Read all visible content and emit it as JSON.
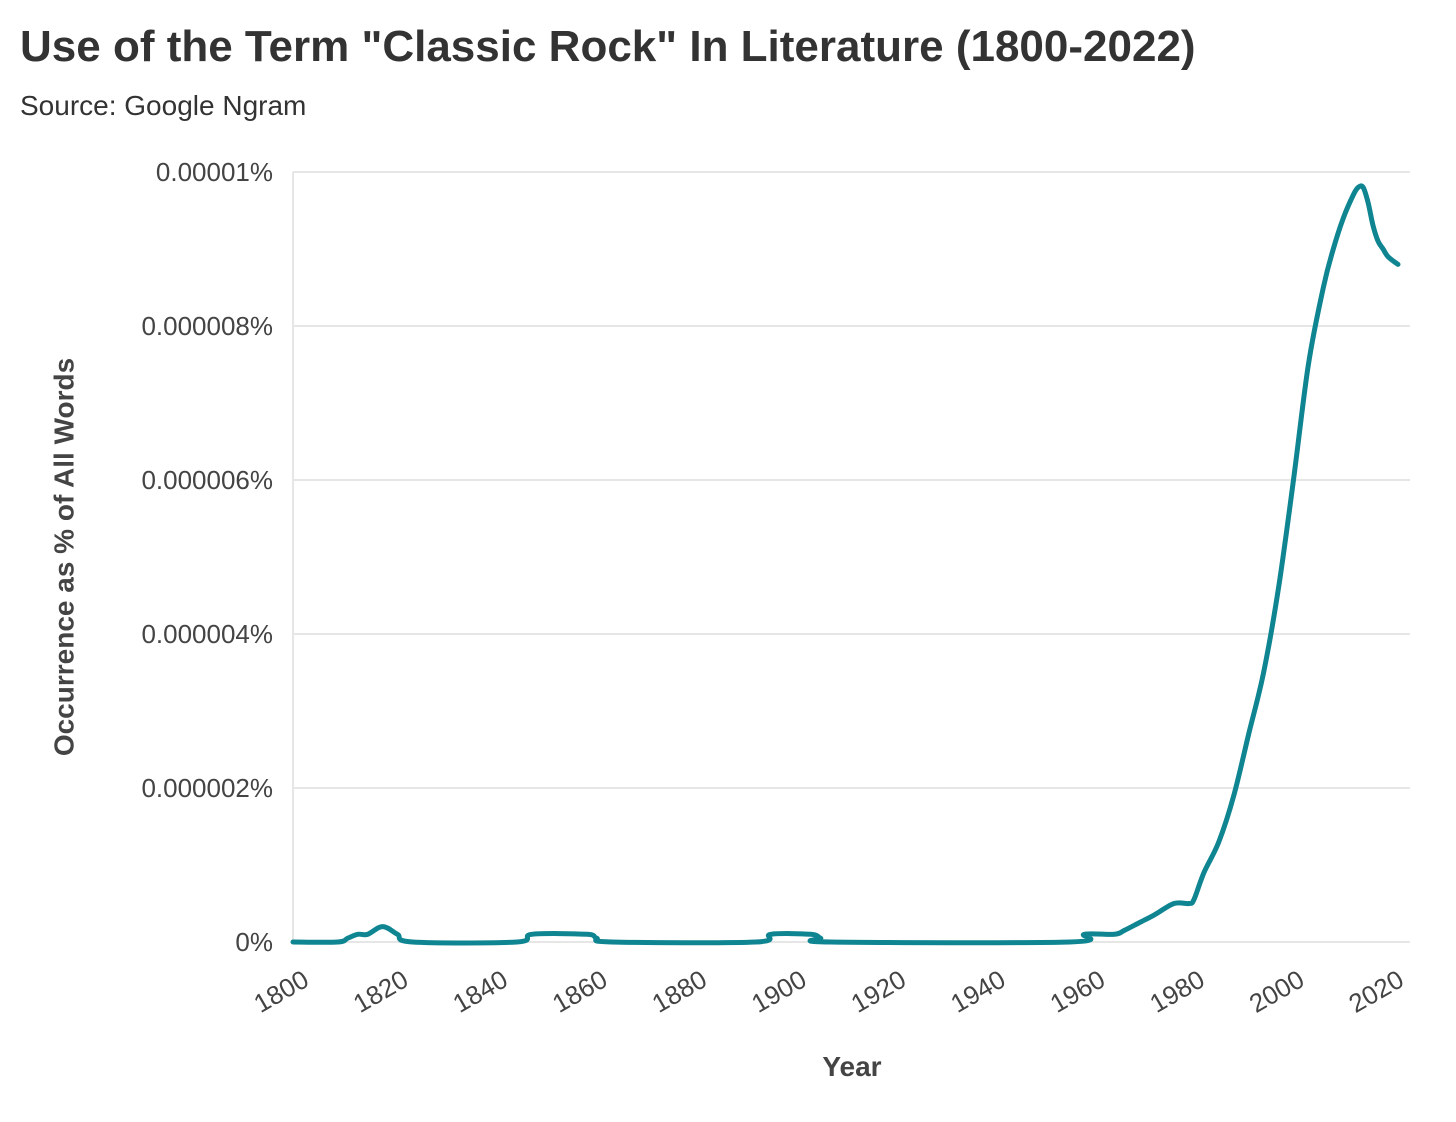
{
  "chart_data": {
    "type": "line",
    "title": "Use of the Term \"Classic Rock\" In Literature (1800-2022)",
    "subtitle": "Source: Google Ngram",
    "xlabel": "Year",
    "ylabel": "Occurrence as % of All Words",
    "xlim": [
      1800,
      2022
    ],
    "ylim": [
      0,
      1e-05
    ],
    "x_ticks": [
      1800,
      1820,
      1840,
      1860,
      1880,
      1900,
      1920,
      1940,
      1960,
      1980,
      2000,
      2020
    ],
    "y_ticks": [
      0,
      2e-06,
      4e-06,
      6e-06,
      8e-06,
      1e-05
    ],
    "y_tick_labels": [
      "0%",
      "0.000002%",
      "0.000004%",
      "0.000006%",
      "0.000008%",
      "0.00001%"
    ],
    "grid": "horizontal",
    "line_color": "#0e8591",
    "series": [
      {
        "x": [
          1800,
          1809,
          1811,
          1813,
          1815,
          1818,
          1821,
          1824,
          1845,
          1848,
          1859,
          1861,
          1864,
          1893,
          1896,
          1904,
          1906,
          1908,
          1956,
          1959,
          1965,
          1967,
          1970,
          1973,
          1977,
          1980,
          1981,
          1983,
          1986,
          1989,
          1992,
          1995,
          1998,
          2001,
          2004,
          2007,
          2009,
          2011,
          2013,
          2014,
          2015,
          2016,
          2017,
          2018,
          2019,
          2020,
          2022
        ],
        "y": [
          0,
          0,
          5e-08,
          1e-07,
          1e-07,
          2e-07,
          1e-07,
          0,
          0,
          1e-07,
          1e-07,
          5e-08,
          0,
          0,
          1e-07,
          1e-07,
          5e-08,
          0,
          0,
          1e-07,
          1e-07,
          1.5e-07,
          2.5e-07,
          3.5e-07,
          5e-07,
          5e-07,
          5.5e-07,
          9e-07,
          1.3e-06,
          1.9e-06,
          2.7e-06,
          3.5e-06,
          4.6e-06,
          6e-06,
          7.5e-06,
          8.5e-06,
          9e-06,
          9.4e-06,
          9.7e-06,
          9.8e-06,
          9.8e-06,
          9.6e-06,
          9.3e-06,
          9.1e-06,
          9e-06,
          8.9e-06,
          8.8e-06
        ]
      }
    ]
  }
}
